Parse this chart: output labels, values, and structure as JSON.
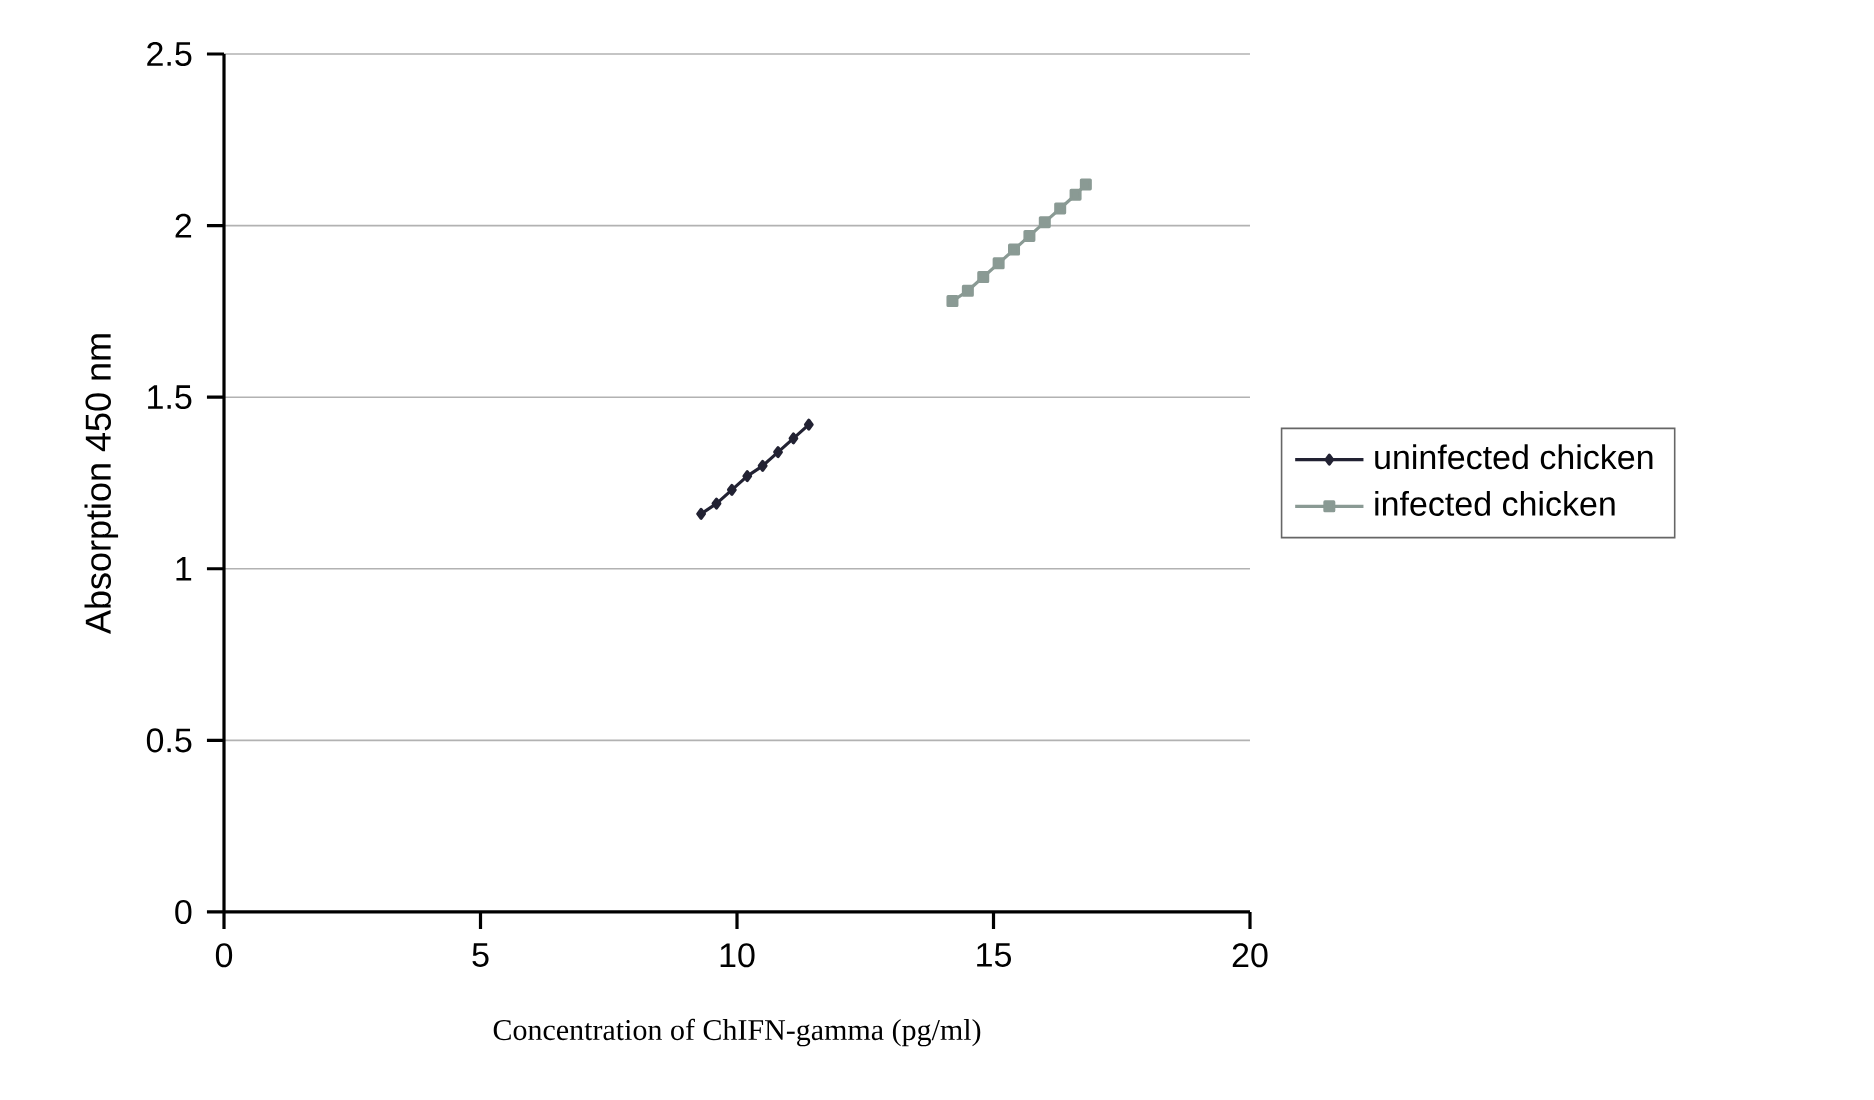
{
  "chart_data": {
    "type": "line",
    "xlabel": "Concentration of  ChIFN-gamma (pg/ml)",
    "ylabel": "Absorption 450 nm",
    "xlim": [
      0,
      20
    ],
    "xticks": [
      0,
      5,
      10,
      15,
      20
    ],
    "ylim": [
      0,
      2.5
    ],
    "yticks": [
      0,
      0.5,
      1,
      1.5,
      2,
      2.5
    ],
    "grid": "y",
    "legend": "right",
    "series": [
      {
        "name": "uninfected chicken",
        "color": "#222233",
        "marker": "diamond",
        "x": [
          9.3,
          9.6,
          9.9,
          10.2,
          10.5,
          10.8,
          11.1,
          11.4
        ],
        "values": [
          1.16,
          1.19,
          1.23,
          1.27,
          1.3,
          1.34,
          1.38,
          1.42
        ]
      },
      {
        "name": "infected chicken",
        "color": "#8a9a94",
        "marker": "square",
        "x": [
          14.2,
          14.5,
          14.8,
          15.1,
          15.4,
          15.7,
          16.0,
          16.3,
          16.6,
          16.8
        ],
        "values": [
          1.78,
          1.81,
          1.85,
          1.89,
          1.93,
          1.97,
          2.01,
          2.05,
          2.09,
          2.12
        ]
      }
    ]
  }
}
